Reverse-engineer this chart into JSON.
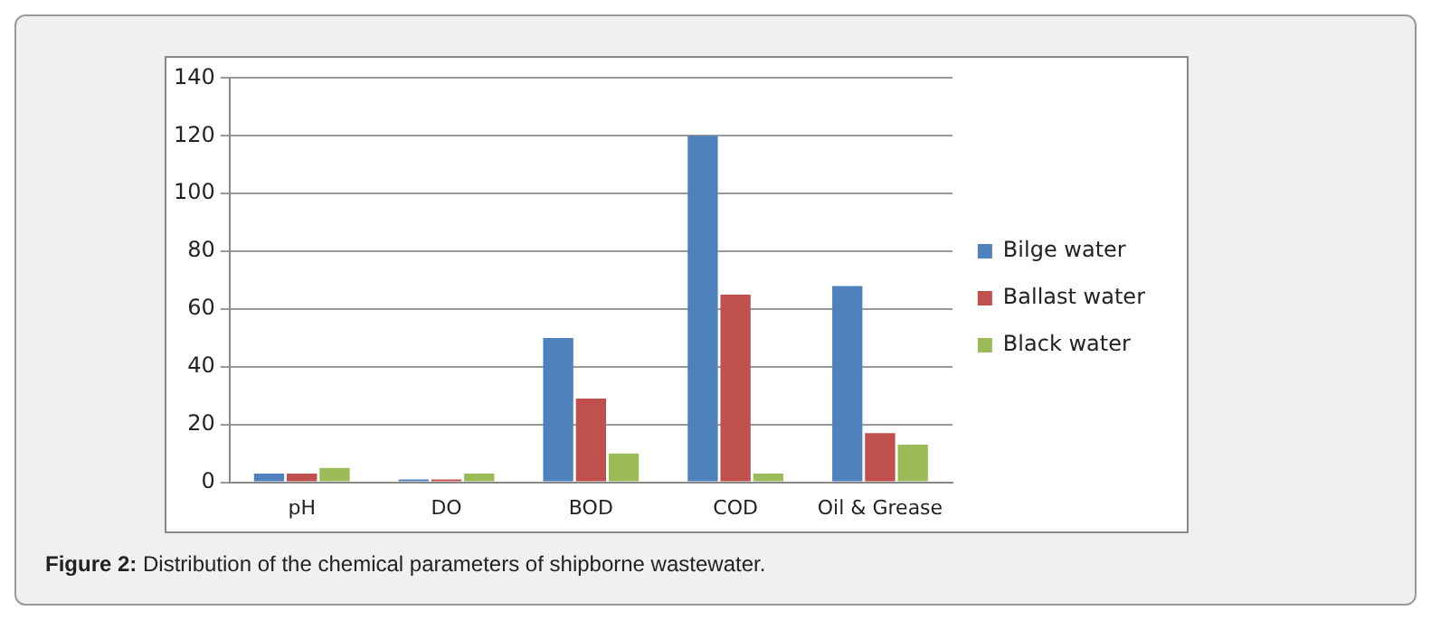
{
  "chart_data": {
    "type": "bar",
    "categories": [
      "pH",
      "DO",
      "BOD",
      "COD",
      "Oil & Grease"
    ],
    "series": [
      {
        "name": "Bilge water",
        "color": "#4f81bd",
        "values": [
          3,
          1,
          50,
          120,
          68
        ]
      },
      {
        "name": "Ballast water",
        "color": "#c0504d",
        "values": [
          3,
          1,
          29,
          65,
          17
        ]
      },
      {
        "name": "Black water",
        "color": "#9bbb59",
        "values": [
          5,
          3,
          10,
          3,
          13
        ]
      }
    ],
    "ylim": [
      0,
      140
    ],
    "yticks": [
      0,
      20,
      40,
      60,
      80,
      100,
      120,
      140
    ],
    "grid": "y",
    "legend": "right",
    "annotations": [
      "Figure 2: Distribution of the chemical parameters of shipborne wastewater."
    ]
  }
}
